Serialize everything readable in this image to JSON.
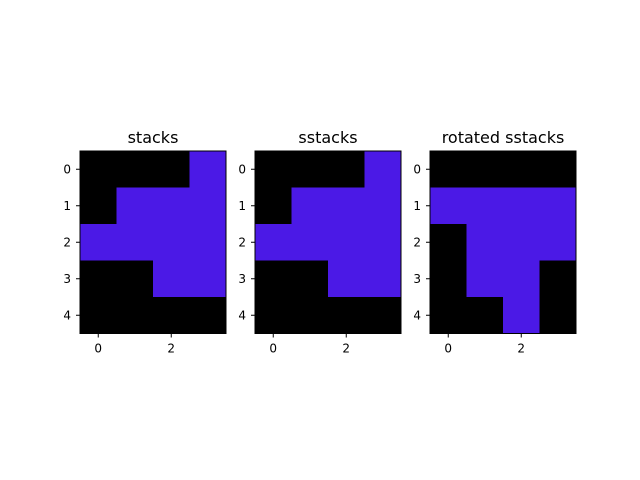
{
  "colors": {
    "background": "#ffffff",
    "fill_on": "#4b19e6",
    "fill_off": "#000000",
    "axis": "#000000"
  },
  "chart_data": [
    {
      "type": "heatmap",
      "title": "stacks",
      "xlabel": "",
      "ylabel": "",
      "x_ticks": [
        0,
        2
      ],
      "y_ticks": [
        0,
        1,
        2,
        3,
        4
      ],
      "grid": false,
      "values": [
        [
          0,
          0,
          0,
          1
        ],
        [
          0,
          1,
          1,
          1
        ],
        [
          1,
          1,
          1,
          1
        ],
        [
          0,
          0,
          1,
          1
        ],
        [
          0,
          0,
          0,
          0
        ]
      ]
    },
    {
      "type": "heatmap",
      "title": "sstacks",
      "xlabel": "",
      "ylabel": "",
      "x_ticks": [
        0,
        2
      ],
      "y_ticks": [
        0,
        1,
        2,
        3,
        4
      ],
      "grid": false,
      "values": [
        [
          0,
          0,
          0,
          1
        ],
        [
          0,
          1,
          1,
          1
        ],
        [
          1,
          1,
          1,
          1
        ],
        [
          0,
          0,
          1,
          1
        ],
        [
          0,
          0,
          0,
          0
        ]
      ]
    },
    {
      "type": "heatmap",
      "title": "rotated sstacks",
      "xlabel": "",
      "ylabel": "",
      "x_ticks": [
        0,
        2
      ],
      "y_ticks": [
        0,
        1,
        2,
        3,
        4
      ],
      "grid": false,
      "values": [
        [
          0,
          0,
          0,
          0
        ],
        [
          1,
          1,
          1,
          1
        ],
        [
          0,
          1,
          1,
          1
        ],
        [
          0,
          1,
          1,
          0
        ],
        [
          0,
          0,
          1,
          0
        ]
      ]
    }
  ]
}
